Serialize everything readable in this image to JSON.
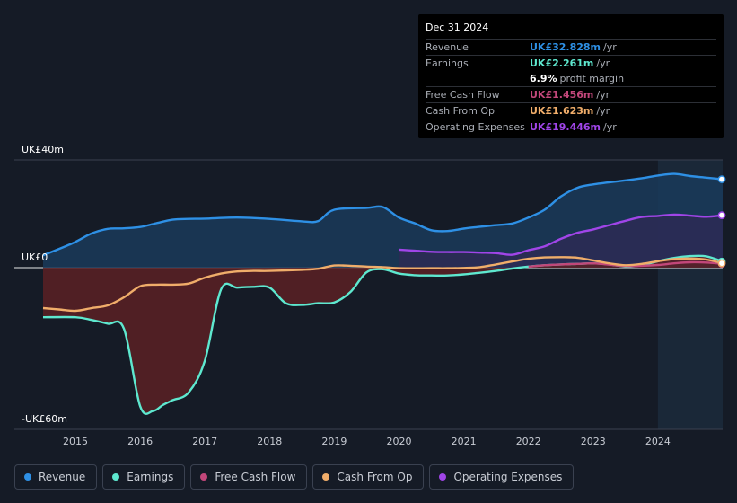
{
  "chart_data": {
    "type": "area",
    "title": "",
    "y_unit": "UK£",
    "ylim": [
      -60,
      40
    ],
    "xlim": [
      2014.5,
      2025.0
    ],
    "y_tick_labels": [
      {
        "value": 40,
        "label": "UK£40m"
      },
      {
        "value": 0,
        "label": "UK£0"
      },
      {
        "value": -60,
        "label": "-UK£60m"
      }
    ],
    "x_ticks": [
      2015,
      2016,
      2017,
      2018,
      2019,
      2020,
      2021,
      2022,
      2023,
      2024
    ],
    "x_tick_labels": [
      "2015",
      "2016",
      "2017",
      "2018",
      "2019",
      "2020",
      "2021",
      "2022",
      "2023",
      "2024"
    ],
    "highlight_start": 2024.0,
    "series": [
      {
        "name": "Revenue",
        "color": "#2e90e5",
        "fill": "#1a3a5a",
        "points": [
          [
            2014.5,
            4.6
          ],
          [
            2014.95,
            9
          ],
          [
            2015.25,
            12.7
          ],
          [
            2015.5,
            14.4
          ],
          [
            2015.75,
            14.6
          ],
          [
            2016.0,
            15.1
          ],
          [
            2016.25,
            16.5
          ],
          [
            2016.5,
            17.8
          ],
          [
            2016.75,
            18.1
          ],
          [
            2017.0,
            18.2
          ],
          [
            2017.5,
            18.6
          ],
          [
            2018.0,
            18.1
          ],
          [
            2018.5,
            17.2
          ],
          [
            2018.75,
            17.3
          ],
          [
            2019.0,
            21.5
          ],
          [
            2019.5,
            22.2
          ],
          [
            2019.75,
            22.5
          ],
          [
            2020.0,
            18.6
          ],
          [
            2020.25,
            16.4
          ],
          [
            2020.5,
            13.9
          ],
          [
            2020.75,
            13.6
          ],
          [
            2021.0,
            14.5
          ],
          [
            2021.25,
            15.2
          ],
          [
            2021.5,
            15.8
          ],
          [
            2021.75,
            16.4
          ],
          [
            2022.0,
            18.6
          ],
          [
            2022.25,
            21.5
          ],
          [
            2022.5,
            26.4
          ],
          [
            2022.75,
            29.6
          ],
          [
            2023.0,
            30.9
          ],
          [
            2023.5,
            32.4
          ],
          [
            2023.75,
            33.2
          ],
          [
            2024.0,
            34.2
          ],
          [
            2024.25,
            34.8
          ],
          [
            2024.5,
            34
          ],
          [
            2024.75,
            33.4
          ],
          [
            2025.0,
            32.8
          ]
        ]
      },
      {
        "name": "Earnings",
        "color": "#5ee8cf",
        "fill": "#5a2025",
        "points": [
          [
            2014.5,
            -18.4
          ],
          [
            2015.0,
            -18.4
          ],
          [
            2015.25,
            -19.4
          ],
          [
            2015.5,
            -20.8
          ],
          [
            2015.75,
            -22.7
          ],
          [
            2016.0,
            -51.4
          ],
          [
            2016.2,
            -53.2
          ],
          [
            2016.35,
            -51
          ],
          [
            2016.5,
            -49.2
          ],
          [
            2016.75,
            -46.3
          ],
          [
            2017.0,
            -34.5
          ],
          [
            2017.25,
            -8.1
          ],
          [
            2017.5,
            -7.4
          ],
          [
            2017.75,
            -7.1
          ],
          [
            2018.0,
            -7.4
          ],
          [
            2018.25,
            -13.2
          ],
          [
            2018.5,
            -13.8
          ],
          [
            2018.75,
            -13.2
          ],
          [
            2019.0,
            -12.9
          ],
          [
            2019.25,
            -9
          ],
          [
            2019.5,
            -1.7
          ],
          [
            2019.75,
            -0.6
          ],
          [
            2020.0,
            -2.2
          ],
          [
            2020.25,
            -2.8
          ],
          [
            2020.5,
            -2.9
          ],
          [
            2020.75,
            -2.9
          ],
          [
            2021.0,
            -2.5
          ],
          [
            2021.25,
            -1.9
          ],
          [
            2021.5,
            -1.2
          ],
          [
            2021.75,
            -0.3
          ],
          [
            2022.0,
            0.4
          ],
          [
            2022.25,
            0.9
          ],
          [
            2022.5,
            1.2
          ],
          [
            2022.75,
            1.4
          ],
          [
            2023.0,
            1.6
          ],
          [
            2023.25,
            1.2
          ],
          [
            2023.5,
            0.4
          ],
          [
            2023.75,
            0.9
          ],
          [
            2024.0,
            2.4
          ],
          [
            2024.25,
            3.6
          ],
          [
            2024.5,
            4.3
          ],
          [
            2024.75,
            4.2
          ],
          [
            2025.0,
            2.261
          ]
        ]
      },
      {
        "name": "Free Cash Flow",
        "color": "#c2477a",
        "fill": "none",
        "points": [
          [
            2022.0,
            0.4
          ],
          [
            2022.25,
            0.9
          ],
          [
            2022.5,
            1.2
          ],
          [
            2022.75,
            1.4
          ],
          [
            2023.0,
            1.6
          ],
          [
            2023.25,
            1.1
          ],
          [
            2023.5,
            0.6
          ],
          [
            2023.75,
            0.7
          ],
          [
            2024.0,
            1.0
          ],
          [
            2024.25,
            1.6
          ],
          [
            2024.5,
            2.0
          ],
          [
            2024.75,
            1.9
          ],
          [
            2025.0,
            1.456
          ]
        ]
      },
      {
        "name": "Cash From Op",
        "color": "#f0ad6a",
        "fill": "none",
        "points": [
          [
            2014.5,
            -15
          ],
          [
            2014.75,
            -15.5
          ],
          [
            2015.0,
            -16
          ],
          [
            2015.25,
            -15
          ],
          [
            2015.5,
            -14
          ],
          [
            2015.75,
            -11
          ],
          [
            2016.0,
            -6.9
          ],
          [
            2016.25,
            -6.3
          ],
          [
            2016.5,
            -6.3
          ],
          [
            2016.75,
            -5.9
          ],
          [
            2017.0,
            -3.7
          ],
          [
            2017.25,
            -2.2
          ],
          [
            2017.5,
            -1.4
          ],
          [
            2017.75,
            -1.2
          ],
          [
            2018.0,
            -1.2
          ],
          [
            2018.5,
            -0.8
          ],
          [
            2018.75,
            -0.4
          ],
          [
            2019.0,
            0.8
          ],
          [
            2019.25,
            0.7
          ],
          [
            2019.5,
            0.4
          ],
          [
            2019.75,
            0.2
          ],
          [
            2020.0,
            -0.2
          ],
          [
            2020.5,
            -0.2
          ],
          [
            2020.75,
            -0.2
          ],
          [
            2021.0,
            -0.1
          ],
          [
            2021.25,
            0.2
          ],
          [
            2021.5,
            1.2
          ],
          [
            2021.75,
            2.3
          ],
          [
            2022.0,
            3.3
          ],
          [
            2022.25,
            3.8
          ],
          [
            2022.5,
            3.9
          ],
          [
            2022.75,
            3.7
          ],
          [
            2023.0,
            2.7
          ],
          [
            2023.25,
            1.6
          ],
          [
            2023.5,
            0.9
          ],
          [
            2023.75,
            1.4
          ],
          [
            2024.0,
            2.4
          ],
          [
            2024.25,
            3.2
          ],
          [
            2024.5,
            3.4
          ],
          [
            2024.75,
            3.0
          ],
          [
            2025.0,
            1.623
          ]
        ]
      },
      {
        "name": "Operating Expenses",
        "color": "#a045e8",
        "fill": "#2f2a55",
        "points": [
          [
            2020.0,
            6.7
          ],
          [
            2020.25,
            6.3
          ],
          [
            2020.5,
            5.9
          ],
          [
            2020.75,
            5.8
          ],
          [
            2021.0,
            5.8
          ],
          [
            2021.25,
            5.6
          ],
          [
            2021.5,
            5.4
          ],
          [
            2021.75,
            4.8
          ],
          [
            2022.0,
            6.5
          ],
          [
            2022.25,
            7.9
          ],
          [
            2022.5,
            10.7
          ],
          [
            2022.75,
            12.9
          ],
          [
            2023.0,
            14.2
          ],
          [
            2023.25,
            15.8
          ],
          [
            2023.5,
            17.4
          ],
          [
            2023.75,
            18.8
          ],
          [
            2024.0,
            19.2
          ],
          [
            2024.25,
            19.7
          ],
          [
            2024.5,
            19.3
          ],
          [
            2024.75,
            18.9
          ],
          [
            2025.0,
            19.446
          ]
        ]
      }
    ]
  },
  "tooltip": {
    "date": "Dec 31 2024",
    "rows": [
      {
        "label": "Revenue",
        "value": "UK£32.828m",
        "unit": "/yr",
        "color": "#2e90e5"
      },
      {
        "label": "Earnings",
        "value": "UK£2.261m",
        "unit": "/yr",
        "color": "#5ee8cf"
      },
      {
        "label": "",
        "value": "6.9%",
        "unit": "profit margin",
        "color": "#ffffff"
      },
      {
        "label": "Free Cash Flow",
        "value": "UK£1.456m",
        "unit": "/yr",
        "color": "#c2477a"
      },
      {
        "label": "Cash From Op",
        "value": "UK£1.623m",
        "unit": "/yr",
        "color": "#f0ad6a"
      },
      {
        "label": "Operating Expenses",
        "value": "UK£19.446m",
        "unit": "/yr",
        "color": "#a045e8"
      }
    ]
  },
  "legend": [
    {
      "label": "Revenue",
      "color": "#2e90e5"
    },
    {
      "label": "Earnings",
      "color": "#5ee8cf"
    },
    {
      "label": "Free Cash Flow",
      "color": "#c2477a"
    },
    {
      "label": "Cash From Op",
      "color": "#f0ad6a"
    },
    {
      "label": "Operating Expenses",
      "color": "#a045e8"
    }
  ]
}
